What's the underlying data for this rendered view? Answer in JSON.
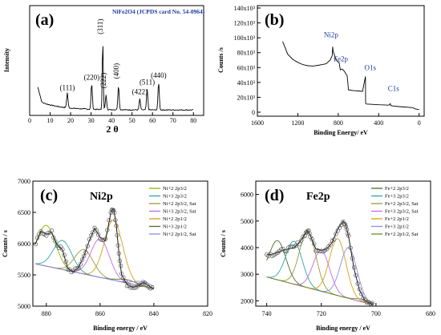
{
  "chart_data": [
    {
      "type": "line",
      "panel_label": "(a)",
      "title": "NiFe2O4 (JCPDS card No. 54-0964)",
      "xlabel": "2 θ",
      "ylabel": "Intensity",
      "xlim": [
        0,
        85
      ],
      "x_ticks": [
        0,
        10,
        20,
        30,
        40,
        50,
        60,
        70,
        80
      ],
      "peaks": [
        {
          "label": "(111)",
          "x": 18.4,
          "y": 0.22
        },
        {
          "label": "(220)",
          "x": 30.3,
          "y": 0.37
        },
        {
          "label": "(311)",
          "x": 35.7,
          "y": 1.0
        },
        {
          "label": "(222)",
          "x": 37.3,
          "y": 0.21
        },
        {
          "label": "(400)",
          "x": 43.4,
          "y": 0.35
        },
        {
          "label": "(422)",
          "x": 53.8,
          "y": 0.16
        },
        {
          "label": "(511)",
          "x": 57.4,
          "y": 0.3
        },
        {
          "label": "(440)",
          "x": 63.0,
          "y": 0.4
        }
      ]
    },
    {
      "type": "line",
      "panel_label": "(b)",
      "xlabel": "Binding Energy/ eV",
      "ylabel": "Counts /s",
      "xlim": [
        1600,
        -50
      ],
      "ylim": [
        0,
        140000
      ],
      "x_ticks": [
        1600,
        1200,
        800,
        400,
        0
      ],
      "y_ticks": [
        "0",
        "20x10³",
        "40x10³",
        "60x10³",
        "80x10³",
        "100x10³",
        "120x10³",
        "140x10³"
      ],
      "x": [
        1350,
        1300,
        1250,
        1200,
        1150,
        1100,
        1050,
        1000,
        960,
        920,
        880,
        860,
        855,
        850,
        820,
        790,
        780,
        760,
        740,
        712,
        705,
        700,
        650,
        600,
        560,
        531,
        529,
        520,
        450,
        400,
        350,
        300,
        285,
        280,
        250,
        200,
        150,
        100,
        60,
        40,
        0
      ],
      "y": [
        95000,
        78000,
        71000,
        67000,
        64000,
        62500,
        62000,
        63000,
        64000,
        65000,
        70000,
        76000,
        88000,
        82000,
        70000,
        66000,
        57000,
        58000,
        55000,
        49000,
        40000,
        30000,
        29000,
        28500,
        28000,
        48000,
        12000,
        11000,
        10500,
        10000,
        9800,
        9500,
        11500,
        8800,
        8300,
        7500,
        7000,
        6600,
        6000,
        4500,
        3500
      ],
      "annotations": [
        {
          "text": "Ni2p",
          "x": 855,
          "y": 88000
        },
        {
          "text": "Fe2p",
          "x": 712,
          "y": 49000
        },
        {
          "text": "O1s",
          "x": 531,
          "y": 48000
        },
        {
          "text": "C1s",
          "x": 285,
          "y": 11500
        }
      ]
    },
    {
      "type": "line",
      "panel_label": "(c)",
      "title": "Ni2p",
      "xlabel": "Binding energy / eV",
      "ylabel": "Counts / s",
      "xlim": [
        885,
        820
      ],
      "ylim": [
        5000,
        7000
      ],
      "x_ticks": [
        880,
        860,
        840,
        820
      ],
      "y_ticks": [
        5000,
        5500,
        6000,
        6500,
        7000
      ],
      "legend": [
        "Ni+2 2p3/2",
        "Ni+3 2p3/2",
        "Ni+2 2p3/2, Sat",
        "Ni+3 2p3/2, Sat",
        "Ni+2 2p1/2",
        "Ni+3 2p1/2",
        "Ni+2 2p1/2, Sat"
      ],
      "series_colors": [
        "#8db600",
        "#2aa6a6",
        "#9b9b3c",
        "#c46be0",
        "#d4a017",
        "#4f6b2a",
        "#8c8cf0"
      ],
      "x": [
        884,
        882,
        880,
        878,
        876,
        874,
        872,
        870,
        868,
        866,
        864,
        862,
        860,
        858,
        856,
        855,
        854,
        853,
        852,
        850,
        848,
        846,
        844,
        842,
        840
      ],
      "y": [
        6000,
        6200,
        6150,
        6180,
        5980,
        5900,
        5600,
        5550,
        5620,
        5800,
        6050,
        6250,
        6100,
        6050,
        6500,
        6560,
        6300,
        5850,
        5500,
        5350,
        5300,
        5320,
        5380,
        5330,
        5280
      ]
    },
    {
      "type": "line",
      "panel_label": "(d)",
      "title": "Fe2p",
      "xlabel": "Binding energy / eV",
      "ylabel": "Counts / s",
      "xlim": [
        744,
        680
      ],
      "ylim": [
        1800,
        6500
      ],
      "x_ticks": [
        740,
        720,
        700,
        680
      ],
      "y_ticks": [
        2000,
        3000,
        4000,
        5000,
        6000
      ],
      "legend": [
        "Fe+2 2p3/2",
        "Fe+3 2p3/2",
        "Fe+2 2p3/2, Sat",
        "Fe+3 2p3/2, Sat",
        "Fe+2 2p1/2",
        "Fe+3 2p1/2",
        "Fe+2 2p1/2, Sat"
      ],
      "series_colors": [
        "#4f6b2a",
        "#2aa6a6",
        "#9b9b3c",
        "#c46be0",
        "#d4a017",
        "#8c8cf0",
        "#6b8e23"
      ],
      "x": [
        740,
        738,
        736,
        734,
        732,
        730,
        728,
        726,
        725,
        724,
        722,
        720,
        718,
        716,
        714,
        712,
        711,
        710,
        708,
        706,
        704,
        702,
        701
      ],
      "y": [
        3750,
        3750,
        3820,
        3900,
        3950,
        4000,
        4200,
        4500,
        4650,
        4450,
        3950,
        3900,
        3950,
        4200,
        4700,
        5000,
        4850,
        4400,
        3200,
        2400,
        2000,
        1900,
        1850
      ]
    }
  ]
}
